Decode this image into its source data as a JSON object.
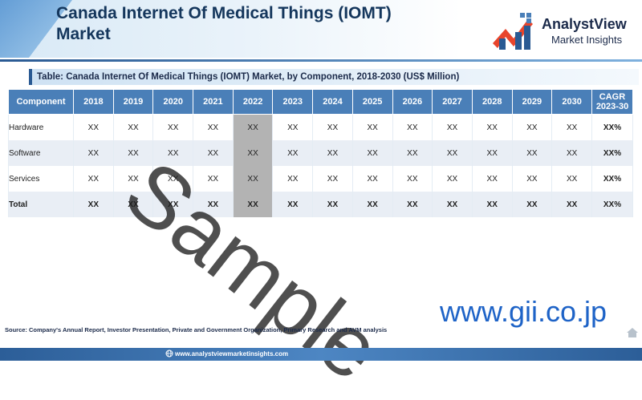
{
  "header": {
    "title": "Canada Internet Of Medical Things (IOMT) Market"
  },
  "logo": {
    "name": "AnalystView",
    "tagline": "Market Insights"
  },
  "table": {
    "caption": "Table: Canada Internet Of Medical Things (IOMT) Market, by Component, 2018-2030 (US$ Million)",
    "columns": [
      "Component",
      "2018",
      "2019",
      "2020",
      "2021",
      "2022",
      "2023",
      "2024",
      "2025",
      "2026",
      "2027",
      "2028",
      "2029",
      "2030"
    ],
    "cagr_header": [
      "CAGR",
      "2023-30"
    ],
    "rows": [
      {
        "label": "Hardware",
        "cells": [
          "XX",
          "XX",
          "XX",
          "XX",
          "XX",
          "XX",
          "XX",
          "XX",
          "XX",
          "XX",
          "XX",
          "XX",
          "XX"
        ],
        "cagr": "XX%"
      },
      {
        "label": "Software",
        "cells": [
          "XX",
          "XX",
          "XX",
          "XX",
          "XX",
          "XX",
          "XX",
          "XX",
          "XX",
          "XX",
          "XX",
          "XX",
          "XX"
        ],
        "cagr": "XX%"
      },
      {
        "label": "Services",
        "cells": [
          "XX",
          "XX",
          "XX",
          "XX",
          "XX",
          "XX",
          "XX",
          "XX",
          "XX",
          "XX",
          "XX",
          "XX",
          "XX"
        ],
        "cagr": "XX%"
      },
      {
        "label": "Total",
        "cells": [
          "XX",
          "XX",
          "XX",
          "XX",
          "XX",
          "XX",
          "XX",
          "XX",
          "XX",
          "XX",
          "XX",
          "XX",
          "XX"
        ],
        "cagr": "XX%"
      }
    ]
  },
  "watermark": "Sample",
  "gii_url": "www.gii.co.jp",
  "source": "Source: Company's Annual Report, Investor Presentation, Private and Government Organization, Primary Research and AVM analysis",
  "footer": {
    "url": "www.analystviewmarketinsights.com"
  },
  "colors": {
    "header_blue": "#4a7fb8",
    "highlight_column": "#b3b3b3",
    "row_alt": "#e9eef5",
    "title_navy": "#14365c",
    "gii_blue": "#1e63c7",
    "logo_red": "#e8452c"
  },
  "icons": [
    "analystview-logo-icon",
    "globe-icon",
    "home-icon"
  ]
}
